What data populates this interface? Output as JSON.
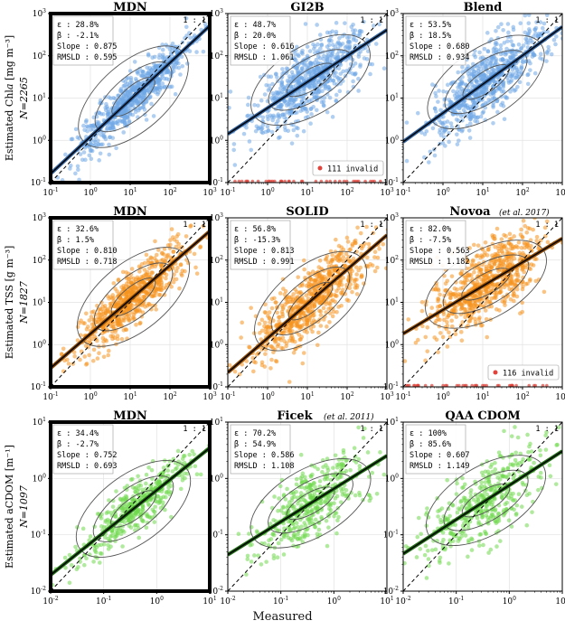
{
  "figure": {
    "xlabel": "Measured"
  },
  "rows": [
    {
      "ylabel": "Estimated Chl𝑎 [mg m⁻³]",
      "n_label": "N=2265",
      "axis": {
        "min_exp": -1,
        "max_exp": 3
      },
      "color": "#6fa8e6",
      "line_color": "#2f5f9a",
      "panels": [
        {
          "title": "MDN",
          "cite": "",
          "highlight": true,
          "stats": [
            "ε : 28.8%",
            "β : -2.1%",
            "Slope : 0.875",
            "RMSLD : 0.595"
          ],
          "fit": {
            "slope": 0.875,
            "intercept_log": -0.05
          },
          "invalid": null
        },
        {
          "title": "GI2B",
          "cite": "",
          "highlight": false,
          "stats": [
            "ε : 48.7%",
            "β : 20.0%",
            "Slope : 0.616",
            "RMSLD : 1.061"
          ],
          "fit": {
            "slope": 0.616,
            "intercept_log": 0.35
          },
          "invalid": "111 invalid"
        },
        {
          "title": "Blend",
          "cite": "",
          "highlight": false,
          "stats": [
            "ε : 53.5%",
            "β : 18.5%",
            "Slope : 0.680",
            "RMSLD : 0.934"
          ],
          "fit": {
            "slope": 0.68,
            "intercept_log": 0.3
          },
          "invalid": null
        }
      ]
    },
    {
      "ylabel": "Estimated TSS [g m⁻³]",
      "n_label": "N=1827",
      "axis": {
        "min_exp": -1,
        "max_exp": 3
      },
      "color": "#f5931f",
      "line_color": "#8a4a08",
      "panels": [
        {
          "title": "MDN",
          "cite": "",
          "highlight": true,
          "stats": [
            "ε : 32.6%",
            "β : 1.5%",
            "Slope : 0.810",
            "RMSLD : 0.718"
          ],
          "fit": {
            "slope": 0.81,
            "intercept_log": 0.05
          },
          "invalid": null
        },
        {
          "title": "SOLID",
          "cite": "",
          "highlight": false,
          "stats": [
            "ε : 56.8%",
            "β : -15.3%",
            "Slope : 0.813",
            "RMSLD : 0.991"
          ],
          "fit": {
            "slope": 0.813,
            "intercept_log": -0.05
          },
          "invalid": null
        },
        {
          "title": "Novoa",
          "cite": "(et al. 2017)",
          "highlight": false,
          "stats": [
            "ε : 82.0%",
            "β : -7.5%",
            "Slope : 0.563",
            "RMSLD : 1.182"
          ],
          "fit": {
            "slope": 0.563,
            "intercept_log": 0.35
          },
          "invalid": "116 invalid"
        }
      ]
    },
    {
      "ylabel": "Estimated aCDOM [m⁻¹]",
      "n_label": "N=1097",
      "axis": {
        "min_exp": -2,
        "max_exp": 1
      },
      "color": "#6fd94c",
      "line_color": "#1f6a14",
      "panels": [
        {
          "title": "MDN",
          "cite": "",
          "highlight": true,
          "stats": [
            "ε : 34.4%",
            "β : -2.7%",
            "Slope : 0.752",
            "RMSLD : 0.693"
          ],
          "fit": {
            "slope": 0.752,
            "intercept_log": -0.1
          },
          "invalid": null
        },
        {
          "title": "Ficek",
          "cite": "(et al. 2011)",
          "highlight": false,
          "stats": [
            "ε : 70.2%",
            "β : 54.9%",
            "Slope : 0.586",
            "RMSLD : 1.108"
          ],
          "fit": {
            "slope": 0.586,
            "intercept_log": 0.0
          },
          "invalid": null
        },
        {
          "title": "QAA CDOM",
          "cite": "",
          "highlight": false,
          "stats": [
            "ε : 100%",
            "β : 85.6%",
            "Slope : 0.607",
            "RMSLD : 1.149"
          ],
          "fit": {
            "slope": 0.607,
            "intercept_log": 0.05
          },
          "invalid": null
        }
      ]
    }
  ],
  "one_to_one_label": "1 : 1",
  "chart_data": [
    {
      "type": "scatter",
      "panel": "Chla / MDN",
      "xlabel": "Measured",
      "ylabel": "Estimated Chla [mg m-3]",
      "xlim": [
        0.1,
        1000
      ],
      "ylim": [
        0.1,
        1000
      ],
      "log": true,
      "n": 2265,
      "epsilon_pct": 28.8,
      "beta_pct": -2.1,
      "slope": 0.875,
      "rmsld": 0.595
    },
    {
      "type": "scatter",
      "panel": "Chla / GI2B",
      "xlim": [
        0.1,
        1000
      ],
      "ylim": [
        0.1,
        1000
      ],
      "log": true,
      "n": 2265,
      "epsilon_pct": 48.7,
      "beta_pct": 20.0,
      "slope": 0.616,
      "rmsld": 1.061,
      "invalid": 111
    },
    {
      "type": "scatter",
      "panel": "Chla / Blend",
      "xlim": [
        0.1,
        1000
      ],
      "ylim": [
        0.1,
        1000
      ],
      "log": true,
      "n": 2265,
      "epsilon_pct": 53.5,
      "beta_pct": 18.5,
      "slope": 0.68,
      "rmsld": 0.934
    },
    {
      "type": "scatter",
      "panel": "TSS / MDN",
      "ylabel": "Estimated TSS [g m-3]",
      "xlim": [
        0.1,
        1000
      ],
      "ylim": [
        0.1,
        1000
      ],
      "log": true,
      "n": 1827,
      "epsilon_pct": 32.6,
      "beta_pct": 1.5,
      "slope": 0.81,
      "rmsld": 0.718
    },
    {
      "type": "scatter",
      "panel": "TSS / SOLID",
      "xlim": [
        0.1,
        1000
      ],
      "ylim": [
        0.1,
        1000
      ],
      "log": true,
      "n": 1827,
      "epsilon_pct": 56.8,
      "beta_pct": -15.3,
      "slope": 0.813,
      "rmsld": 0.991
    },
    {
      "type": "scatter",
      "panel": "TSS / Novoa",
      "xlim": [
        0.1,
        1000
      ],
      "ylim": [
        0.1,
        1000
      ],
      "log": true,
      "n": 1827,
      "epsilon_pct": 82.0,
      "beta_pct": -7.5,
      "slope": 0.563,
      "rmsld": 1.182,
      "invalid": 116
    },
    {
      "type": "scatter",
      "panel": "aCDOM / MDN",
      "ylabel": "Estimated aCDOM [m-1]",
      "xlim": [
        0.01,
        10
      ],
      "ylim": [
        0.01,
        10
      ],
      "log": true,
      "n": 1097,
      "epsilon_pct": 34.4,
      "beta_pct": -2.7,
      "slope": 0.752,
      "rmsld": 0.693
    },
    {
      "type": "scatter",
      "panel": "aCDOM / Ficek",
      "xlim": [
        0.01,
        10
      ],
      "ylim": [
        0.01,
        10
      ],
      "log": true,
      "n": 1097,
      "epsilon_pct": 70.2,
      "beta_pct": 54.9,
      "slope": 0.586,
      "rmsld": 1.108
    },
    {
      "type": "scatter",
      "panel": "aCDOM / QAA CDOM",
      "xlim": [
        0.01,
        10
      ],
      "ylim": [
        0.01,
        10
      ],
      "log": true,
      "n": 1097,
      "epsilon_pct": 100,
      "beta_pct": 85.6,
      "slope": 0.607,
      "rmsld": 1.149
    }
  ]
}
